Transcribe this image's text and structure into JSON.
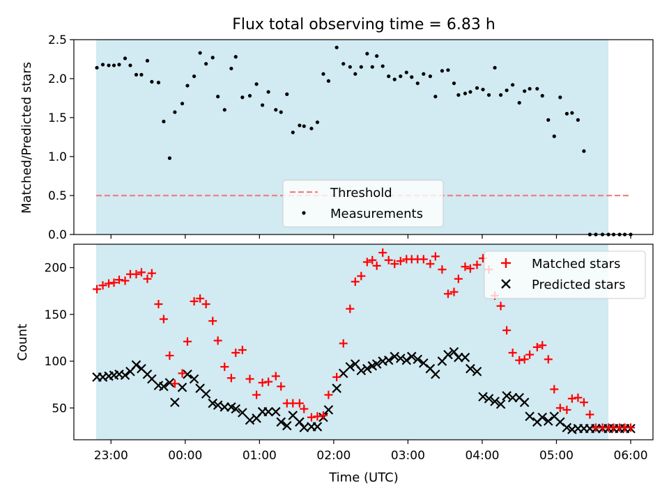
{
  "chart_data": {
    "title": "Flux total observing time = 6.83 h",
    "xlabel": "Time (UTC)",
    "x_unit": "hours since 00:00 UTC",
    "xlim": [
      -1.5,
      6.3
    ],
    "observing_span": [
      -1.2,
      5.7
    ],
    "x_ticks": [
      {
        "value": -1,
        "label": "23:00"
      },
      {
        "value": 0,
        "label": "00:00"
      },
      {
        "value": 1,
        "label": "01:00"
      },
      {
        "value": 2,
        "label": "02:00"
      },
      {
        "value": 3,
        "label": "03:00"
      },
      {
        "value": 4,
        "label": "04:00"
      },
      {
        "value": 5,
        "label": "05:00"
      },
      {
        "value": 6,
        "label": "06:00"
      }
    ],
    "colors": {
      "span": "#add8e6",
      "threshold": "#f08080",
      "matched": "#ff0000",
      "predicted": "#000000"
    },
    "top": {
      "type": "scatter",
      "ylabel": "Matched/Predicted stars",
      "ylim": [
        0,
        2.5
      ],
      "y_ticks": [
        0,
        0.5,
        1.0,
        1.5,
        2.0,
        2.5
      ],
      "y_tick_labels": [
        "0.0",
        "0.5",
        "1.0",
        "1.5",
        "2.0",
        "2.5"
      ],
      "threshold": {
        "label": "Threshold",
        "y": 0.5,
        "x_start": -1.2,
        "x_end": 6.0
      },
      "measurements_label": "Measurements",
      "x": [
        -1.19,
        -1.11,
        -1.03,
        -0.96,
        -0.89,
        -0.81,
        -0.74,
        -0.66,
        -0.59,
        -0.51,
        -0.45,
        -0.36,
        -0.29,
        -0.21,
        -0.14,
        -0.04,
        0.03,
        0.12,
        0.2,
        0.28,
        0.37,
        0.44,
        0.53,
        0.62,
        0.68,
        0.77,
        0.87,
        0.96,
        1.04,
        1.12,
        1.22,
        1.29,
        1.37,
        1.45,
        1.54,
        1.6,
        1.7,
        1.78,
        1.86,
        1.93,
        2.04,
        2.13,
        2.22,
        2.29,
        2.37,
        2.45,
        2.52,
        2.58,
        2.66,
        2.74,
        2.82,
        2.9,
        2.98,
        3.05,
        3.13,
        3.21,
        3.3,
        3.37,
        3.46,
        3.54,
        3.62,
        3.68,
        3.77,
        3.84,
        3.93,
        4.01,
        4.09,
        4.17,
        4.25,
        4.33,
        4.41,
        4.5,
        4.57,
        4.64,
        4.74,
        4.81,
        4.89,
        4.97,
        5.05,
        5.14,
        5.21,
        5.29,
        5.37,
        5.45,
        5.53,
        5.62,
        5.7,
        5.77,
        5.85,
        5.92,
        6.0
      ],
      "y": [
        2.14,
        2.18,
        2.17,
        2.17,
        2.18,
        2.26,
        2.17,
        2.05,
        2.05,
        2.23,
        1.96,
        1.95,
        1.45,
        0.98,
        1.57,
        1.68,
        1.91,
        2.03,
        2.33,
        2.19,
        2.27,
        1.77,
        1.6,
        2.13,
        2.28,
        1.76,
        1.78,
        1.93,
        1.66,
        1.83,
        1.6,
        1.57,
        1.8,
        1.31,
        1.4,
        1.39,
        1.36,
        1.44,
        2.06,
        1.97,
        2.4,
        2.19,
        2.15,
        2.06,
        2.15,
        2.32,
        2.15,
        2.29,
        2.16,
        2.03,
        1.99,
        2.03,
        2.08,
        2.02,
        1.94,
        2.06,
        2.03,
        1.77,
        2.1,
        2.11,
        1.94,
        1.79,
        1.81,
        1.83,
        1.88,
        1.86,
        1.79,
        2.14,
        1.79,
        1.85,
        1.92,
        1.69,
        1.84,
        1.87,
        1.87,
        1.78,
        1.47,
        1.26,
        1.76,
        1.55,
        1.56,
        1.47,
        1.07,
        0.0,
        0.0,
        0.0,
        0.0,
        0.0,
        0.0,
        0.0,
        0.0
      ]
    },
    "bottom": {
      "type": "scatter",
      "ylabel": "Count",
      "ylim": [
        16,
        225
      ],
      "y_ticks": [
        50,
        100,
        150,
        200
      ],
      "y_tick_labels": [
        "50",
        "100",
        "150",
        "200"
      ],
      "series": [
        {
          "name": "Matched stars",
          "marker": "+",
          "x": [
            -1.19,
            -1.11,
            -1.03,
            -0.96,
            -0.89,
            -0.81,
            -0.74,
            -0.66,
            -0.59,
            -0.51,
            -0.45,
            -0.36,
            -0.29,
            -0.21,
            -0.14,
            -0.04,
            0.03,
            0.12,
            0.2,
            0.28,
            0.37,
            0.44,
            0.53,
            0.62,
            0.68,
            0.77,
            0.87,
            0.96,
            1.04,
            1.12,
            1.22,
            1.29,
            1.37,
            1.45,
            1.54,
            1.6,
            1.7,
            1.78,
            1.86,
            1.93,
            2.04,
            2.13,
            2.22,
            2.29,
            2.37,
            2.45,
            2.52,
            2.58,
            2.66,
            2.74,
            2.82,
            2.9,
            2.98,
            3.05,
            3.13,
            3.21,
            3.3,
            3.37,
            3.46,
            3.54,
            3.62,
            3.68,
            3.77,
            3.84,
            3.93,
            4.01,
            4.09,
            4.17,
            4.25,
            4.33,
            4.41,
            4.5,
            4.57,
            4.64,
            4.74,
            4.81,
            4.89,
            4.97,
            5.05,
            5.14,
            5.21,
            5.29,
            5.37,
            5.45,
            5.53,
            5.62,
            5.7,
            5.77,
            5.85,
            5.92,
            6.0
          ],
          "y": [
            177,
            181,
            183,
            184,
            187,
            186,
            193,
            193,
            195,
            188,
            194,
            161,
            145,
            106,
            76,
            87,
            121,
            164,
            167,
            161,
            143,
            122,
            94,
            82,
            109,
            112,
            81,
            64,
            77,
            78,
            84,
            73,
            55,
            55,
            55,
            49,
            40,
            41,
            42,
            64,
            83,
            119,
            156,
            185,
            191,
            206,
            208,
            202,
            216,
            208,
            204,
            207,
            209,
            209,
            209,
            209,
            204,
            212,
            198,
            172,
            174,
            188,
            201,
            199,
            203,
            210,
            198,
            170,
            159,
            133,
            109,
            101,
            102,
            107,
            115,
            117,
            102,
            70,
            50,
            48,
            60,
            61,
            56,
            43,
            29,
            29,
            29,
            29,
            29,
            29,
            29
          ]
        },
        {
          "name": "Predicted stars",
          "marker": "x",
          "x": [
            -1.19,
            -1.11,
            -1.03,
            -0.96,
            -0.89,
            -0.81,
            -0.74,
            -0.66,
            -0.59,
            -0.51,
            -0.45,
            -0.36,
            -0.29,
            -0.21,
            -0.14,
            -0.04,
            0.03,
            0.12,
            0.2,
            0.28,
            0.37,
            0.44,
            0.53,
            0.62,
            0.68,
            0.77,
            0.87,
            0.96,
            1.04,
            1.12,
            1.22,
            1.29,
            1.37,
            1.45,
            1.54,
            1.6,
            1.7,
            1.78,
            1.86,
            1.93,
            2.04,
            2.13,
            2.22,
            2.29,
            2.37,
            2.45,
            2.52,
            2.58,
            2.66,
            2.74,
            2.82,
            2.9,
            2.98,
            3.05,
            3.13,
            3.21,
            3.3,
            3.37,
            3.46,
            3.54,
            3.62,
            3.68,
            3.77,
            3.84,
            3.93,
            4.01,
            4.09,
            4.17,
            4.25,
            4.33,
            4.41,
            4.5,
            4.57,
            4.64,
            4.74,
            4.81,
            4.89,
            4.97,
            5.05,
            5.14,
            5.21,
            5.29,
            5.37,
            5.45,
            5.53,
            5.62,
            5.7,
            5.77,
            5.85,
            5.92,
            6.0
          ],
          "y": [
            83,
            83,
            84,
            85,
            86,
            85,
            89,
            96,
            92,
            86,
            81,
            74,
            73,
            77,
            56,
            72,
            86,
            81,
            71,
            65,
            55,
            53,
            51,
            51,
            49,
            45,
            37,
            39,
            46,
            46,
            46,
            35,
            31,
            42,
            35,
            29,
            30,
            30,
            40,
            48,
            71,
            87,
            94,
            97,
            90,
            92,
            95,
            97,
            100,
            101,
            105,
            103,
            101,
            105,
            102,
            98,
            92,
            86,
            100,
            107,
            110,
            104,
            104,
            92,
            89,
            62,
            60,
            57,
            54,
            63,
            61,
            61,
            56,
            41,
            35,
            40,
            36,
            41,
            35,
            29,
            27,
            28,
            28,
            28,
            28,
            28,
            28,
            28,
            28,
            28,
            28
          ]
        }
      ]
    }
  }
}
